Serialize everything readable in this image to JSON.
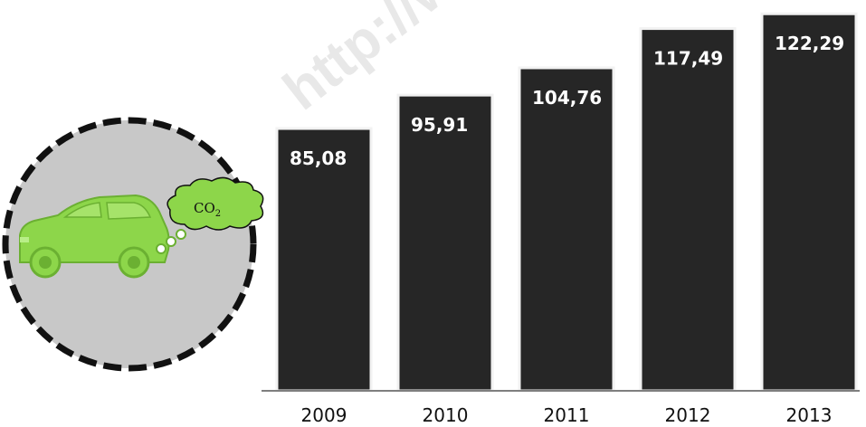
{
  "chart_data": {
    "type": "bar",
    "title": "",
    "xlabel": "",
    "ylabel": "",
    "categories": [
      "2009",
      "2010",
      "2011",
      "2012",
      "2013"
    ],
    "values": [
      85.08,
      95.91,
      104.76,
      117.49,
      122.29
    ],
    "value_labels": [
      "85,08",
      "95,91",
      "104,76",
      "117,49",
      "122,29"
    ],
    "ylim": [
      0,
      125
    ],
    "grid": false,
    "legend": "none",
    "colors": {
      "bar": "#262626",
      "bar_outline": "#f2f2f2",
      "axis": "#7f7f7f"
    }
  },
  "illustration": {
    "icon": "green-car-emitting-co2",
    "cloud_label": "CO",
    "cloud_subscript": "2",
    "colors": {
      "car": "#8dd64a",
      "circle_fill": "#c8c8c8",
      "circle_border": "#111111"
    }
  },
  "watermark": {
    "text": "http://www.bps.go.id"
  }
}
